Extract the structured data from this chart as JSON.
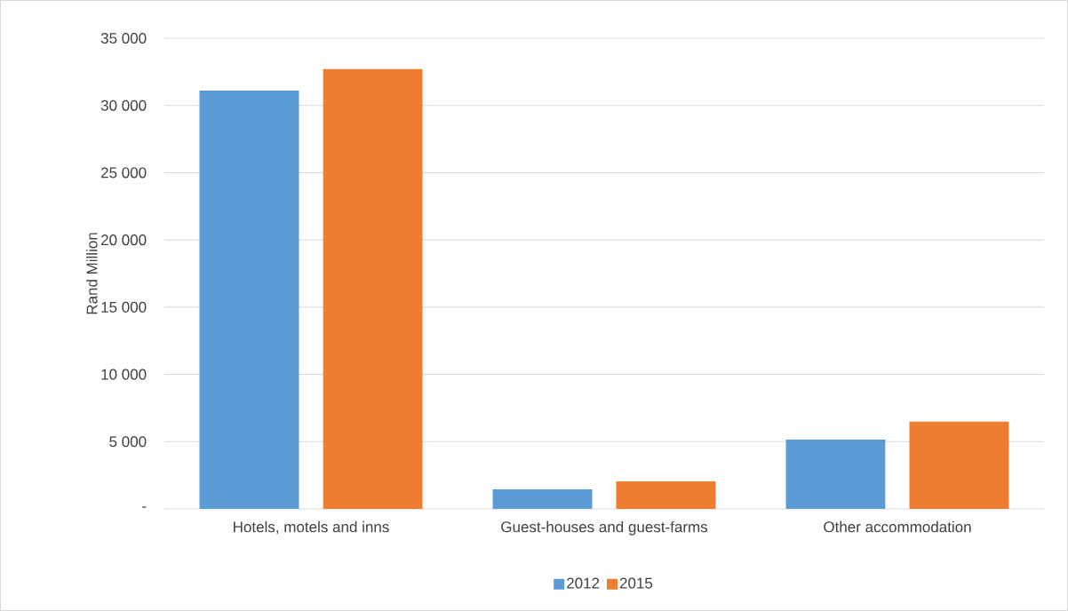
{
  "chart_data": {
    "type": "bar",
    "ylabel": "Rand Million",
    "categories": [
      "Hotels, motels and inns",
      "Guest-houses and guest-farms",
      "Other accommodation"
    ],
    "series": [
      {
        "name": "2012",
        "color": "#5b9bd5",
        "values": [
          31100,
          1450,
          5150
        ]
      },
      {
        "name": "2015",
        "color": "#ed7d31",
        "values": [
          32700,
          2050,
          6480
        ]
      }
    ],
    "ylim": [
      0,
      35000
    ],
    "yticks": [
      {
        "value": 0,
        "label": "-"
      },
      {
        "value": 5000,
        "label": "5 000"
      },
      {
        "value": 10000,
        "label": "10 000"
      },
      {
        "value": 15000,
        "label": "15 000"
      },
      {
        "value": 20000,
        "label": "20 000"
      },
      {
        "value": 25000,
        "label": "25 000"
      },
      {
        "value": 30000,
        "label": "30 000"
      },
      {
        "value": 35000,
        "label": "35 000"
      }
    ],
    "grid": "y",
    "legend": "bottom"
  }
}
